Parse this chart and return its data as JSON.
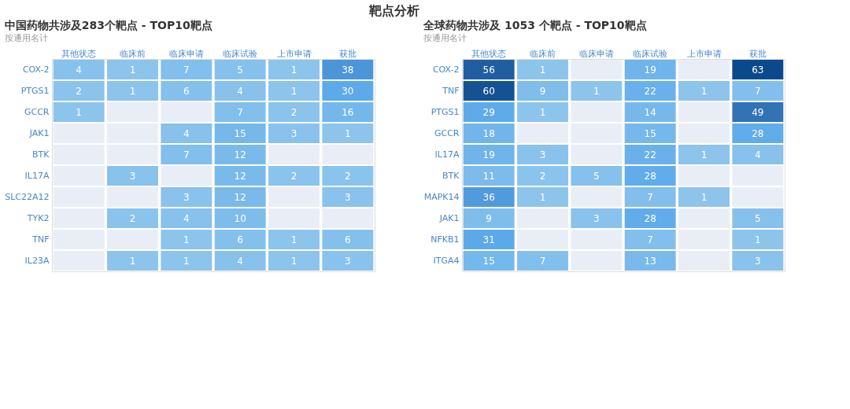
{
  "chart_data": [
    {
      "type": "heatmap",
      "title": "中国药物共涉及283个靶点 - TOP10靶点",
      "subtitle": "按通用名计",
      "annotations": [
        "靶点分析"
      ],
      "categories": [
        "其他状态",
        "临床前",
        "临床申请",
        "临床试验",
        "上市申请",
        "获批"
      ],
      "y_categories": [
        "COX-2",
        "PTGS1",
        "GCCR",
        "JAK1",
        "BTK",
        "IL17A",
        "SLC22A12",
        "TYK2",
        "TNF",
        "IL23A"
      ],
      "cells": [
        [
          4,
          1,
          7,
          5,
          1,
          38
        ],
        [
          2,
          1,
          6,
          4,
          1,
          30
        ],
        [
          1,
          null,
          null,
          7,
          2,
          16
        ],
        [
          null,
          null,
          4,
          15,
          3,
          1
        ],
        [
          null,
          null,
          7,
          12,
          null,
          null
        ],
        [
          null,
          3,
          null,
          12,
          2,
          2
        ],
        [
          null,
          null,
          3,
          12,
          null,
          3
        ],
        [
          null,
          2,
          4,
          10,
          null,
          null
        ],
        [
          null,
          null,
          1,
          6,
          1,
          6
        ],
        [
          null,
          1,
          1,
          4,
          1,
          3
        ]
      ],
      "data_labels": true
    },
    {
      "type": "heatmap",
      "title": "全球药物共涉及 1053 个靶点 - TOP10靶点",
      "subtitle": "按通用名计",
      "categories": [
        "其他状态",
        "临床前",
        "临床申请",
        "临床试验",
        "上市申请",
        "获批"
      ],
      "y_categories": [
        "COX-2",
        "TNF",
        "PTGS1",
        "GCCR",
        "IL17A",
        "BTK",
        "MAPK14",
        "JAK1",
        "NFKB1",
        "ITGA4"
      ],
      "cells": [
        [
          56,
          1,
          null,
          19,
          null,
          63
        ],
        [
          60,
          9,
          1,
          22,
          1,
          7
        ],
        [
          29,
          1,
          null,
          14,
          null,
          49
        ],
        [
          18,
          null,
          null,
          15,
          null,
          28
        ],
        [
          19,
          3,
          null,
          22,
          1,
          4
        ],
        [
          11,
          2,
          5,
          28,
          null,
          null
        ],
        [
          36,
          1,
          null,
          7,
          1,
          null
        ],
        [
          9,
          null,
          3,
          28,
          null,
          5
        ],
        [
          31,
          null,
          null,
          7,
          null,
          1
        ],
        [
          15,
          7,
          null,
          13,
          null,
          3
        ]
      ],
      "data_labels": true
    }
  ]
}
